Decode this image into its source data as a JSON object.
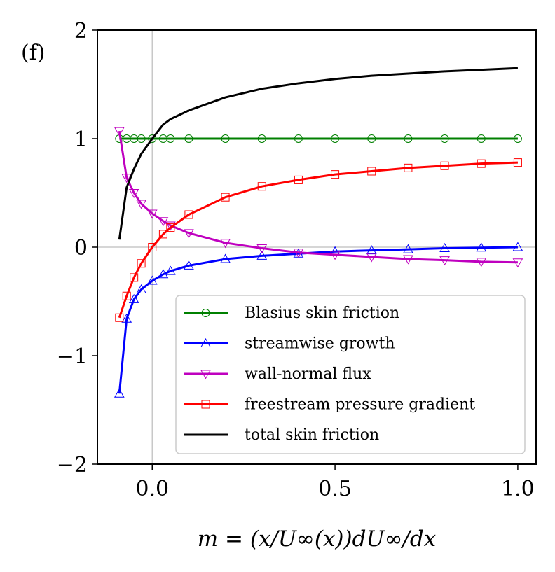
{
  "chart_data": {
    "type": "line",
    "panel_label": "(f)",
    "title": "",
    "xlabel": "m = (x/U∞(x))dU∞/dx",
    "ylabel": "",
    "xlim": [
      -0.15,
      1.05
    ],
    "ylim": [
      -2,
      2
    ],
    "x_ticks": [
      0.0,
      0.5,
      1.0
    ],
    "x_tick_labels": [
      "0.0",
      "0.5",
      "1.0"
    ],
    "y_ticks": [
      -2,
      -1,
      0,
      1,
      2
    ],
    "y_tick_labels": [
      "−2",
      "−1",
      "0",
      "1",
      "2"
    ],
    "reference_lines": {
      "x": 0,
      "y": 0
    },
    "legend_position": "lower-right",
    "series": [
      {
        "name": "Blasius skin friction",
        "color": "#008000",
        "marker": "circle",
        "x": [
          -0.09,
          -0.07,
          -0.05,
          -0.03,
          0.0,
          0.03,
          0.05,
          0.1,
          0.2,
          0.3,
          0.4,
          0.5,
          0.6,
          0.7,
          0.8,
          0.9,
          1.0
        ],
        "y": [
          1.0,
          1.0,
          1.0,
          1.0,
          1.0,
          1.0,
          1.0,
          1.0,
          1.0,
          1.0,
          1.0,
          1.0,
          1.0,
          1.0,
          1.0,
          1.0,
          1.0
        ]
      },
      {
        "name": "streamwise growth",
        "color": "#0000ff",
        "marker": "triangle-up",
        "x": [
          -0.09,
          -0.07,
          -0.05,
          -0.03,
          0.0,
          0.03,
          0.05,
          0.1,
          0.2,
          0.3,
          0.4,
          0.5,
          0.6,
          0.7,
          0.8,
          0.9,
          1.0
        ],
        "y": [
          -1.35,
          -0.66,
          -0.48,
          -0.39,
          -0.31,
          -0.25,
          -0.22,
          -0.17,
          -0.11,
          -0.08,
          -0.06,
          -0.04,
          -0.03,
          -0.02,
          -0.01,
          -0.005,
          0.0
        ]
      },
      {
        "name": "wall-normal flux",
        "color": "#bf00bf",
        "marker": "triangle-down",
        "x": [
          -0.09,
          -0.07,
          -0.05,
          -0.03,
          0.0,
          0.03,
          0.05,
          0.1,
          0.2,
          0.3,
          0.4,
          0.5,
          0.6,
          0.7,
          0.8,
          0.9,
          1.0
        ],
        "y": [
          1.07,
          0.64,
          0.5,
          0.4,
          0.31,
          0.24,
          0.2,
          0.13,
          0.04,
          -0.01,
          -0.05,
          -0.07,
          -0.09,
          -0.11,
          -0.12,
          -0.135,
          -0.14
        ]
      },
      {
        "name": "freestream pressure gradient",
        "color": "#ff0000",
        "marker": "square",
        "x": [
          -0.09,
          -0.07,
          -0.05,
          -0.03,
          0.0,
          0.03,
          0.05,
          0.1,
          0.2,
          0.3,
          0.4,
          0.5,
          0.6,
          0.7,
          0.8,
          0.9,
          1.0
        ],
        "y": [
          -0.65,
          -0.45,
          -0.28,
          -0.15,
          0.0,
          0.12,
          0.18,
          0.3,
          0.46,
          0.56,
          0.62,
          0.67,
          0.7,
          0.73,
          0.75,
          0.77,
          0.78
        ]
      },
      {
        "name": "total skin friction",
        "color": "#000000",
        "marker": "none",
        "x": [
          -0.09,
          -0.07,
          -0.05,
          -0.03,
          0.0,
          0.03,
          0.05,
          0.1,
          0.2,
          0.3,
          0.4,
          0.5,
          0.6,
          0.7,
          0.8,
          0.9,
          1.0
        ],
        "y": [
          0.07,
          0.55,
          0.72,
          0.86,
          1.0,
          1.13,
          1.18,
          1.26,
          1.38,
          1.46,
          1.51,
          1.55,
          1.58,
          1.6,
          1.62,
          1.635,
          1.65
        ]
      }
    ]
  }
}
